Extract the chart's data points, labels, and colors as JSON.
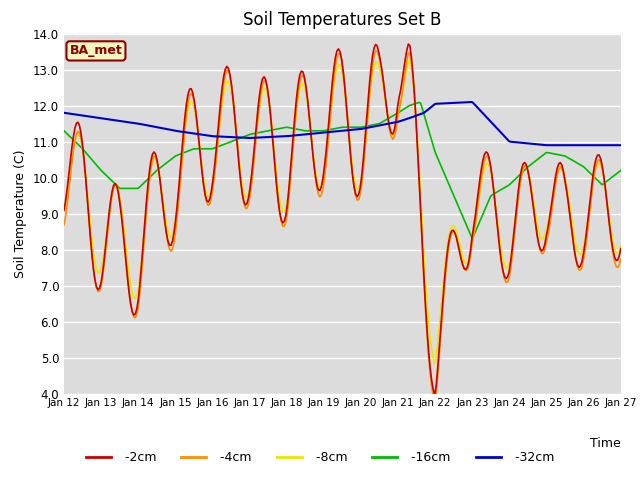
{
  "title": "Soil Temperatures Set B",
  "xlabel": "Time",
  "ylabel": "Soil Temperature (C)",
  "ylim": [
    4.0,
    14.0
  ],
  "yticks": [
    4.0,
    5.0,
    6.0,
    7.0,
    8.0,
    9.0,
    10.0,
    11.0,
    12.0,
    13.0,
    14.0
  ],
  "xtick_labels": [
    "Jan 12",
    "Jan 13",
    "Jan 14",
    "Jan 15",
    "Jan 16",
    "Jan 17",
    "Jan 18",
    "Jan 19",
    "Jan 20",
    "Jan 21",
    "Jan 22",
    "Jan 23",
    "Jan 24",
    "Jan 25",
    "Jan 26",
    "Jan 27"
  ],
  "colors": {
    "-2cm": "#cc0000",
    "-4cm": "#ff8c00",
    "-8cm": "#e8e800",
    "-16cm": "#00bb00",
    "-32cm": "#0000cc"
  },
  "legend_label": "BA_met",
  "background_color": "#dcdcdc",
  "grid_color": "#ffffff",
  "n_points": 360,
  "t_max": 15.0
}
